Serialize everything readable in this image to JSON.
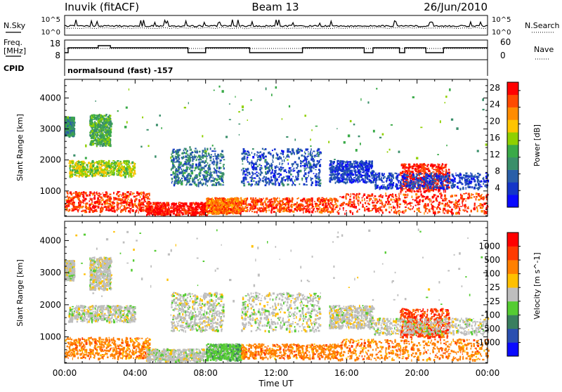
{
  "header": {
    "station": "Inuvik (fitACF)",
    "beam": "Beam 13",
    "date": "26/Jun/2010"
  },
  "strips": {
    "nsky_label": "N.Sky",
    "nsky_ticks": [
      "10^5",
      "10^0"
    ],
    "nsearch_label": "N.Search",
    "nsearch_ticks": [
      "10^5",
      "10^0"
    ],
    "freq_label_1": "Freq.",
    "freq_label_2": "[MHz]",
    "freq_ticks": [
      "18",
      "8"
    ],
    "nave_label": "Nave",
    "nave_ticks": [
      "60",
      "0"
    ],
    "cpid_label": "CPID",
    "cpid_text": "normalsound (fast) -157"
  },
  "chart_data": [
    {
      "type": "heatmap",
      "title": "",
      "xlabel": "Time UT",
      "ylabel": "Slant Range [km]",
      "xlim": [
        0,
        24
      ],
      "ylim": [
        180,
        4600
      ],
      "x_ticks": [
        "00:00",
        "04:00",
        "08:00",
        "12:00",
        "16:00",
        "20:00",
        "00:00"
      ],
      "y_ticks": [
        1000,
        2000,
        3000,
        4000
      ],
      "colorbar": {
        "label": "Power [dB]",
        "ticks": [
          4,
          8,
          12,
          16,
          20,
          24,
          28
        ],
        "range": [
          0,
          30
        ],
        "bands": [
          {
            "from": 0,
            "to": 3,
            "color": "#0a0aff"
          },
          {
            "from": 3,
            "to": 6,
            "color": "#1436c8"
          },
          {
            "from": 6,
            "to": 9,
            "color": "#2a5fa8"
          },
          {
            "from": 9,
            "to": 12,
            "color": "#3a8f6a"
          },
          {
            "from": 12,
            "to": 15,
            "color": "#3aaa48"
          },
          {
            "from": 15,
            "to": 18,
            "color": "#8fd000"
          },
          {
            "from": 18,
            "to": 21,
            "color": "#ffc400"
          },
          {
            "from": 21,
            "to": 24,
            "color": "#ff8c00"
          },
          {
            "from": 24,
            "to": 27,
            "color": "#ff4a00"
          },
          {
            "from": 27,
            "to": 30,
            "color": "#ff0000"
          }
        ]
      },
      "regions": [
        {
          "t0": 0.0,
          "t1": 4.8,
          "r0": 350,
          "r1": 1000,
          "value": 27
        },
        {
          "t0": 4.6,
          "t1": 8.0,
          "r0": 250,
          "r1": 650,
          "value": 29
        },
        {
          "t0": 8.0,
          "t1": 10.0,
          "r0": 300,
          "r1": 800,
          "value": 24
        },
        {
          "t0": 10.0,
          "t1": 15.5,
          "r0": 350,
          "r1": 800,
          "value": 26
        },
        {
          "t0": 15.5,
          "t1": 24.0,
          "r0": 300,
          "r1": 950,
          "value": 27
        },
        {
          "t0": 19.0,
          "t1": 21.8,
          "r0": 1000,
          "r1": 1900,
          "value": 28
        },
        {
          "t0": 0.2,
          "t1": 4.0,
          "r0": 1500,
          "r1": 2000,
          "value": 17
        },
        {
          "t0": 1.4,
          "t1": 2.6,
          "r0": 2500,
          "r1": 3500,
          "value": 13
        },
        {
          "t0": 0.0,
          "t1": 0.5,
          "r0": 2800,
          "r1": 3400,
          "value": 11
        },
        {
          "t0": 6.0,
          "t1": 9.0,
          "r0": 1200,
          "r1": 2400,
          "value": 9
        },
        {
          "t0": 10.0,
          "t1": 14.5,
          "r0": 1200,
          "r1": 2400,
          "value": 6
        },
        {
          "t0": 15.0,
          "t1": 17.5,
          "r0": 1300,
          "r1": 2000,
          "value": 5
        },
        {
          "t0": 17.5,
          "t1": 24.0,
          "r0": 1100,
          "r1": 1600,
          "value": 5
        },
        {
          "t0": 0.0,
          "t1": 24.0,
          "r0": 2000,
          "r1": 4400,
          "value": 14
        }
      ]
    },
    {
      "type": "heatmap",
      "title": "",
      "xlabel": "Time UT",
      "ylabel": "Slant Range [km]",
      "xlim": [
        0,
        24
      ],
      "ylim": [
        180,
        4600
      ],
      "x_ticks": [
        "00:00",
        "04:00",
        "08:00",
        "12:00",
        "16:00",
        "20:00",
        "00:00"
      ],
      "y_ticks": [
        1000,
        2000,
        3000,
        4000
      ],
      "colorbar": {
        "label": "Velocity [m s^-1]",
        "ticks": [
          "1000",
          "500",
          "100",
          "25",
          "-25",
          "-100",
          "-500",
          "-1000"
        ],
        "bands": [
          {
            "color": "#0a0aff"
          },
          {
            "color": "#2a4fb0"
          },
          {
            "color": "#3a7f5f"
          },
          {
            "color": "#55cc33"
          },
          {
            "color": "#bebebe"
          },
          {
            "color": "#ffc000"
          },
          {
            "color": "#ff8000"
          },
          {
            "color": "#ff3a00"
          },
          {
            "color": "#ff0000"
          }
        ]
      },
      "regions": [
        {
          "t0": 0.0,
          "t1": 4.8,
          "r0": 350,
          "r1": 1000,
          "value": "-100"
        },
        {
          "t0": 4.6,
          "t1": 8.0,
          "r0": 250,
          "r1": 650,
          "value": "25"
        },
        {
          "t0": 8.0,
          "t1": 10.0,
          "r0": 300,
          "r1": 800,
          "value": "100"
        },
        {
          "t0": 10.0,
          "t1": 15.5,
          "r0": 350,
          "r1": 800,
          "value": "-100"
        },
        {
          "t0": 15.5,
          "t1": 24.0,
          "r0": 300,
          "r1": 950,
          "value": "-100"
        },
        {
          "t0": 19.0,
          "t1": 21.8,
          "r0": 1000,
          "r1": 1900,
          "value": "-500"
        },
        {
          "t0": 0.2,
          "t1": 4.0,
          "r0": 1500,
          "r1": 2000,
          "value": "25"
        },
        {
          "t0": 1.4,
          "t1": 2.6,
          "r0": 2500,
          "r1": 3500,
          "value": "25"
        },
        {
          "t0": 0.0,
          "t1": 0.5,
          "r0": 2800,
          "r1": 3400,
          "value": "25"
        },
        {
          "t0": 6.0,
          "t1": 9.0,
          "r0": 1200,
          "r1": 2400,
          "value": "25"
        },
        {
          "t0": 10.0,
          "t1": 14.5,
          "r0": 1200,
          "r1": 2400,
          "value": "25"
        },
        {
          "t0": 15.0,
          "t1": 17.5,
          "r0": 1300,
          "r1": 2000,
          "value": "25"
        },
        {
          "t0": 17.5,
          "t1": 24.0,
          "r0": 1100,
          "r1": 1600,
          "value": "25"
        },
        {
          "t0": 0.0,
          "t1": 24.0,
          "r0": 2000,
          "r1": 4400,
          "value": "25"
        }
      ]
    }
  ]
}
